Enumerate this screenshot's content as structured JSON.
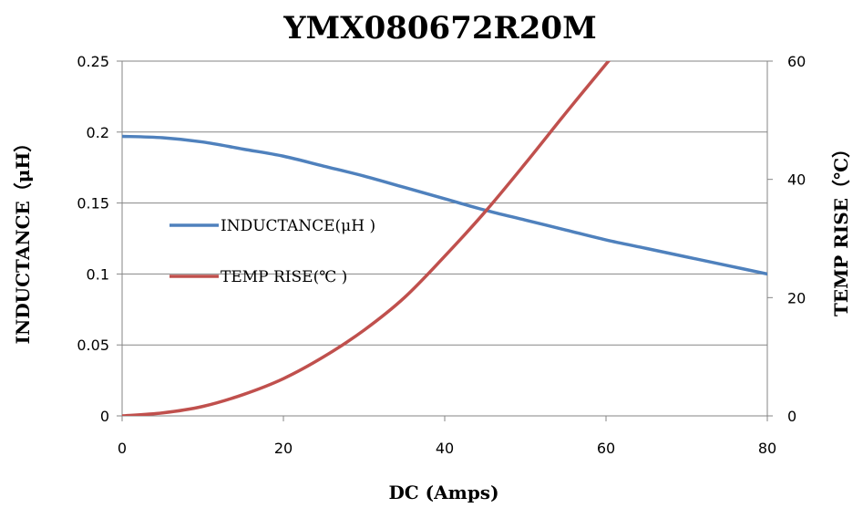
{
  "chart_data": {
    "type": "line",
    "title": "YMX080672R20M",
    "xlabel": "DC (Amps)",
    "ylabel": "INDUCTANCE（μH）",
    "y2label": "TEMP RISE（℃）",
    "xlim": [
      0,
      80
    ],
    "ylim": [
      0,
      0.25
    ],
    "y2lim": [
      0,
      60
    ],
    "x_ticks": [
      "0",
      "20",
      "40",
      "60",
      "80"
    ],
    "y_ticks": [
      "0",
      "0.05",
      "0.1",
      "0.15",
      "0.2",
      "0.25"
    ],
    "y2_ticks": [
      "0",
      "20",
      "40",
      "60"
    ],
    "grid": true,
    "legend_position": "center-left",
    "series": [
      {
        "name": "INDUCTANCE(μH )",
        "axis": "left",
        "color": "#4f81bd",
        "points": [
          [
            0,
            0.197
          ],
          [
            5,
            0.196
          ],
          [
            10,
            0.193
          ],
          [
            15,
            0.188
          ],
          [
            20,
            0.183
          ],
          [
            25,
            0.176
          ],
          [
            30,
            0.169
          ],
          [
            35,
            0.161
          ],
          [
            40,
            0.153
          ],
          [
            45,
            0.145
          ],
          [
            50,
            0.138
          ],
          [
            55,
            0.131
          ],
          [
            60,
            0.124
          ],
          [
            65,
            0.118
          ],
          [
            70,
            0.112
          ],
          [
            75,
            0.106
          ],
          [
            80,
            0.1
          ]
        ]
      },
      {
        "name": "TEMP RISE(℃ )",
        "axis": "right",
        "color": "#c0504d",
        "points": [
          [
            0,
            0
          ],
          [
            5,
            0.5
          ],
          [
            10,
            1.6
          ],
          [
            15,
            3.6
          ],
          [
            20,
            6.3
          ],
          [
            25,
            10
          ],
          [
            30,
            14.5
          ],
          [
            35,
            20
          ],
          [
            40,
            27
          ],
          [
            45,
            34.5
          ],
          [
            50,
            42.7
          ],
          [
            55,
            51.2
          ],
          [
            60,
            59.5
          ],
          [
            61,
            61
          ]
        ]
      }
    ]
  }
}
